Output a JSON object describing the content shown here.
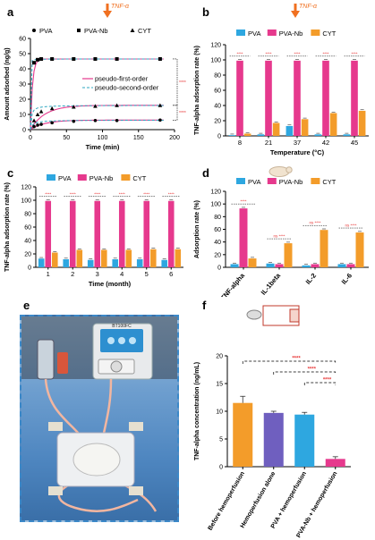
{
  "colors": {
    "pva": "#2ea7e0",
    "pva_nb": "#e6398d",
    "cyt": "#f39c2a",
    "star": "#e83b3b",
    "tnf_arrow": "#f07020",
    "photo_border": "#3b88c8"
  },
  "labels": {
    "tnf_alpha": "TNF-α",
    "a": "a",
    "b": "b",
    "c": "c",
    "d": "d",
    "e": "e",
    "f": "f"
  },
  "chart_data": [
    {
      "panel": "a",
      "type": "line",
      "xlabel": "Time (min)",
      "ylabel": "Amount adsorbed (ng/g)",
      "xlim": [
        0,
        200
      ],
      "ylim": [
        0,
        60
      ],
      "xticks": [
        "0",
        "50",
        "100",
        "150",
        "200"
      ],
      "yticks": [
        "0",
        "10",
        "20",
        "30",
        "40",
        "50",
        "60"
      ],
      "legend": [
        "PVA",
        "PVA-Nb",
        "CYT"
      ],
      "fit_legend": [
        "pseudo-first-order",
        "pseudo-second-order"
      ],
      "significance": [
        "****",
        "****"
      ],
      "series": [
        {
          "name": "PVA-Nb",
          "marker": "square",
          "x": [
            5,
            10,
            15,
            30,
            60,
            90,
            120,
            180
          ],
          "y": [
            44,
            46,
            46.5,
            46.5,
            46.5,
            46.5,
            46.5,
            46.5
          ]
        },
        {
          "name": "CYT",
          "marker": "triangle",
          "x": [
            5,
            10,
            15,
            30,
            60,
            90,
            120,
            180
          ],
          "y": [
            6,
            10,
            12,
            14,
            15,
            15.5,
            16,
            16
          ]
        },
        {
          "name": "PVA",
          "marker": "circle",
          "x": [
            5,
            10,
            15,
            30,
            60,
            90,
            120,
            180
          ],
          "y": [
            2,
            3,
            3.5,
            4.5,
            5.5,
            6,
            6,
            6.3
          ]
        }
      ]
    },
    {
      "panel": "b",
      "type": "bar",
      "xlabel": "Temperature (°C)",
      "ylabel": "TNF-alpha adsorption rate (%)",
      "ylim": [
        0,
        120
      ],
      "yticks": [
        "0",
        "20",
        "40",
        "60",
        "80",
        "100",
        "120"
      ],
      "categories": [
        "8",
        "21",
        "37",
        "42",
        "45"
      ],
      "series": [
        {
          "name": "PVA",
          "values": [
            1,
            2,
            13,
            2,
            2
          ]
        },
        {
          "name": "PVA-Nb",
          "values": [
            99,
            99,
            99,
            99,
            99
          ]
        },
        {
          "name": "CYT",
          "values": [
            3,
            17,
            22,
            30,
            33
          ]
        }
      ],
      "significance": [
        "****",
        "****",
        "****",
        "****",
        "****"
      ]
    },
    {
      "panel": "c",
      "type": "bar",
      "xlabel": "Time (month)",
      "ylabel": "TNF-alpha adsorption rate (%)",
      "ylim": [
        0,
        120
      ],
      "yticks": [
        "0",
        "20",
        "40",
        "60",
        "80",
        "100",
        "120"
      ],
      "categories": [
        "1",
        "2",
        "3",
        "4",
        "5",
        "6"
      ],
      "series": [
        {
          "name": "PVA",
          "values": [
            13,
            12,
            11,
            12,
            12,
            11
          ]
        },
        {
          "name": "PVA-Nb",
          "values": [
            99,
            99,
            99,
            99,
            99,
            99
          ]
        },
        {
          "name": "CYT",
          "values": [
            22,
            26,
            26,
            26,
            27,
            27
          ]
        }
      ],
      "significance": [
        "****",
        "****",
        "****",
        "****",
        "****",
        "****"
      ]
    },
    {
      "panel": "d",
      "type": "bar",
      "xlabel": "",
      "ylabel": "Adsorption rate (%)",
      "ylim": [
        0,
        120
      ],
      "yticks": [
        "0",
        "20",
        "40",
        "60",
        "80",
        "100",
        "120"
      ],
      "categories": [
        "TNF-alpha",
        "IL-1beta",
        "IL-2",
        "IL-6"
      ],
      "series": [
        {
          "name": "PVA",
          "values": [
            5,
            6,
            3,
            5
          ]
        },
        {
          "name": "PVA-Nb",
          "values": [
            93,
            5,
            5,
            5
          ]
        },
        {
          "name": "CYT",
          "values": [
            14,
            38,
            59,
            55
          ]
        }
      ],
      "significance": [
        "****",
        "ns ****",
        "ns ****",
        "ns ****"
      ]
    },
    {
      "panel": "f",
      "type": "bar",
      "xlabel": "",
      "ylabel": "TNF-alpha concentration (ng/mL)",
      "ylim": [
        0,
        20
      ],
      "yticks": [
        "0",
        "5",
        "10",
        "15",
        "20"
      ],
      "categories": [
        "Before hemoperfusion",
        "Hemoperfusion alone",
        "PVA + hemoperfusion",
        "PVA-Nb + hemoperfusion"
      ],
      "values": [
        11.5,
        9.7,
        9.4,
        1.4
      ],
      "errors": [
        1.2,
        0.3,
        0.4,
        0.4
      ],
      "bar_colors": [
        "#f39c2a",
        "#6f5fbf",
        "#2ea7e0",
        "#e6398d"
      ],
      "significance": [
        "****",
        "****",
        "****"
      ]
    }
  ],
  "photo": {
    "device_display": "BT100FC"
  }
}
